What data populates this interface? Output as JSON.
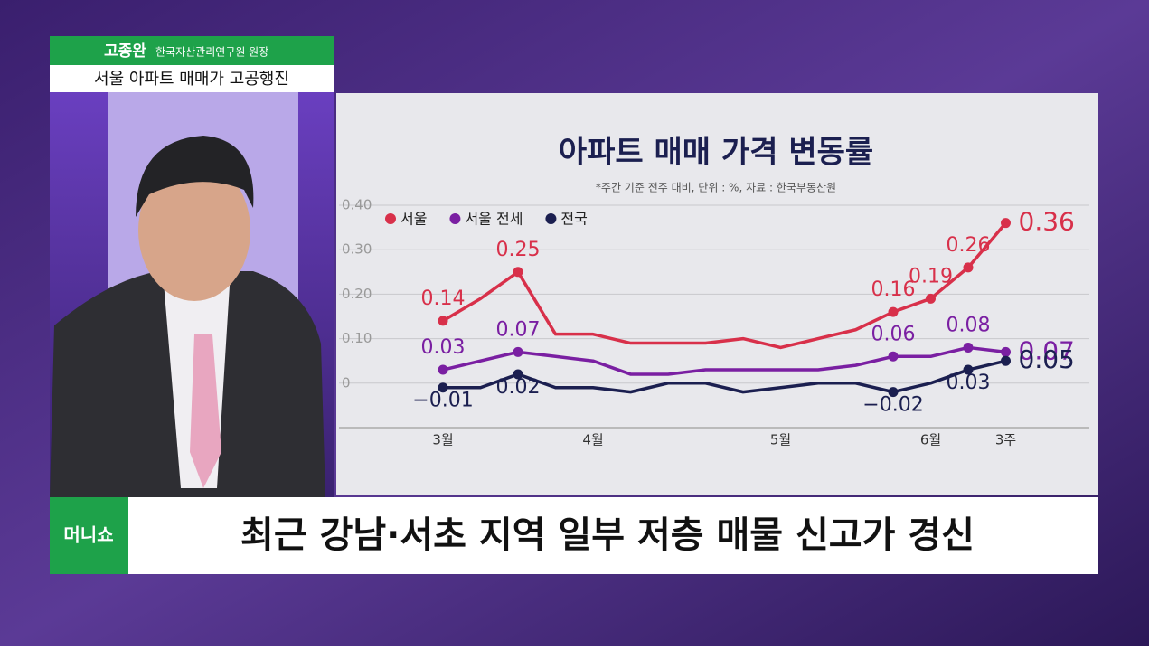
{
  "broadcast": {
    "speaker": "고종완",
    "role": "한국자산관리연구원 원장",
    "headline": "서울 아파트 매매가 고공행진",
    "logo": "머니쇼",
    "caption": "최근 강남·서초 지역 일부 저층 매물 신고가 경신"
  },
  "chart_data": {
    "type": "line",
    "title": "아파트 매매 가격 변동률",
    "subtitle": "*주간 기준 전주 대비, 단위 : %, 자료 : 한국부동산원",
    "categories": [
      "3월",
      null,
      null,
      null,
      "4월",
      null,
      null,
      null,
      null,
      "5월",
      null,
      null,
      null,
      "6월",
      null,
      "3주"
    ],
    "series": [
      {
        "name": "서울",
        "color": "#d8304a",
        "values": [
          0.14,
          0.19,
          0.25,
          0.11,
          0.11,
          0.09,
          0.09,
          0.09,
          0.1,
          0.08,
          0.1,
          0.12,
          0.16,
          0.19,
          0.26,
          0.36
        ],
        "value_labels": [
          "0.14",
          null,
          "0.25",
          null,
          null,
          null,
          null,
          null,
          null,
          null,
          null,
          null,
          "0.16",
          "0.19",
          "0.26",
          "0.36"
        ]
      },
      {
        "name": "서울 전세",
        "color": "#7a1fa2",
        "values": [
          0.03,
          0.05,
          0.07,
          0.06,
          0.05,
          0.02,
          0.02,
          0.03,
          0.03,
          0.03,
          0.03,
          0.04,
          0.06,
          0.06,
          0.08,
          0.07
        ],
        "value_labels": [
          "0.03",
          null,
          "0.07",
          null,
          null,
          null,
          null,
          null,
          null,
          null,
          null,
          null,
          "0.06",
          null,
          "0.08",
          "0.07"
        ]
      },
      {
        "name": "전국",
        "color": "#1b1f50",
        "values": [
          -0.01,
          -0.01,
          0.02,
          -0.01,
          -0.01,
          -0.02,
          0,
          0,
          -0.02,
          -0.01,
          0,
          0,
          -0.02,
          0,
          0.03,
          0.05
        ],
        "value_labels": [
          "−0.01",
          null,
          "0.02",
          null,
          null,
          null,
          null,
          null,
          null,
          null,
          null,
          null,
          "−0.02",
          null,
          "0.03",
          "0.05"
        ]
      }
    ],
    "ylim": [
      -0.1,
      0.4
    ],
    "yticks": [
      0,
      {
        "value": 0.1,
        "label": "0.10"
      },
      {
        "value": 0.2,
        "label": "0.20"
      },
      {
        "value": 0.3,
        "label": "0.30"
      },
      {
        "value": 0.4,
        "label": "0.40"
      }
    ],
    "grid": true,
    "legend": "top-left"
  }
}
